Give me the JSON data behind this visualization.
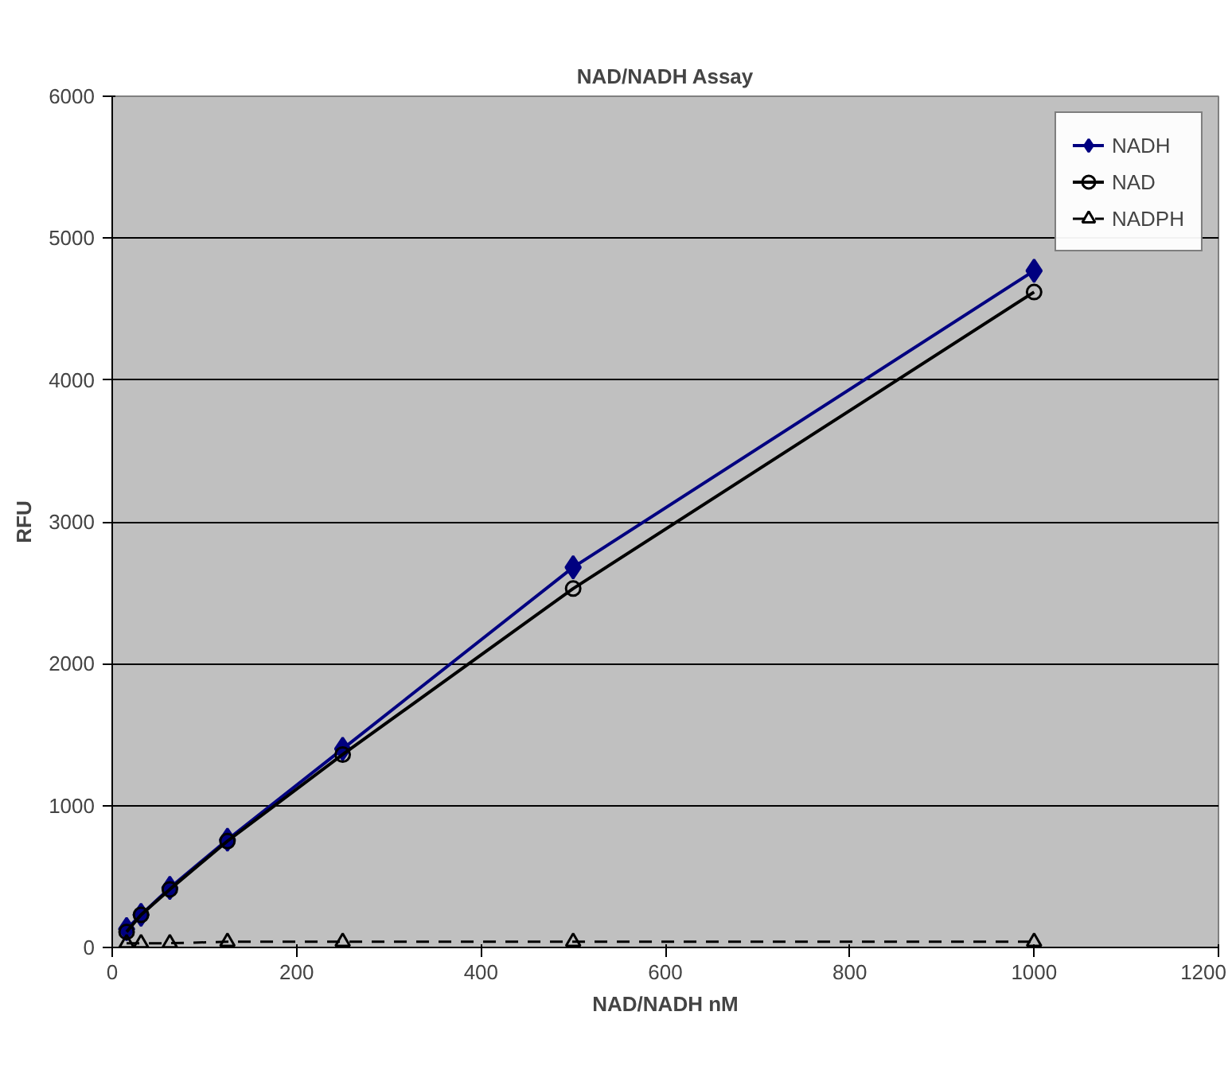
{
  "chart_data": {
    "type": "line",
    "title": "NAD/NADH Assay",
    "xlabel": "NAD/NADH nM",
    "ylabel": "RFU",
    "x": [
      15.6,
      31.25,
      62.5,
      125,
      250,
      500,
      1000
    ],
    "series": [
      {
        "name": "NADH",
        "color": "#000080",
        "marker": "diamond",
        "line_style": "solid",
        "values": [
          130,
          230,
          420,
          760,
          1400,
          2680,
          4770
        ]
      },
      {
        "name": "NAD",
        "color": "#000000",
        "marker": "circle",
        "line_style": "solid",
        "values": [
          110,
          230,
          410,
          750,
          1360,
          2530,
          4620
        ]
      },
      {
        "name": "NADPH",
        "color": "#000000",
        "marker": "triangle",
        "line_style": "dashed",
        "values": [
          30,
          30,
          30,
          40,
          40,
          40,
          40
        ]
      }
    ],
    "xlim": [
      0,
      1200
    ],
    "xticks": [
      0,
      200,
      400,
      600,
      800,
      1000,
      1200
    ],
    "ylim": [
      0,
      6000
    ],
    "yticks": [
      0,
      1000,
      2000,
      3000,
      4000,
      5000,
      6000
    ],
    "grid": "y",
    "legend": "top right"
  }
}
